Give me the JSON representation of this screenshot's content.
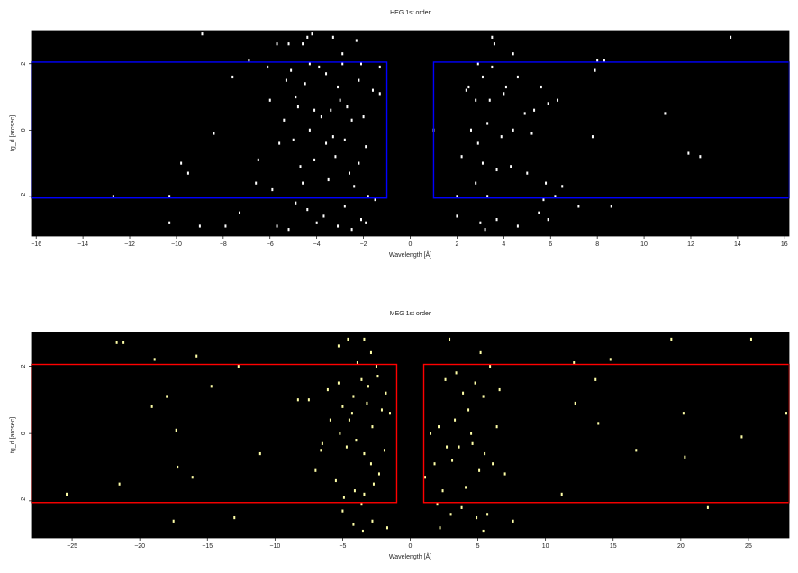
{
  "chart_data": [
    {
      "type": "scatter",
      "title": "HEG 1st order",
      "xlabel": "Wavelength [Å]",
      "ylabel": "tg_d [arcsec]",
      "xlim": [
        -16.2,
        16.2
      ],
      "ylim": [
        -3.2,
        3.0
      ],
      "xticks": [
        -16,
        -14,
        -12,
        -10,
        -8,
        -6,
        -4,
        -2,
        0,
        2,
        4,
        6,
        8,
        10,
        12,
        14,
        16
      ],
      "yticks": [
        -2,
        0,
        2
      ],
      "background": "#000000",
      "point_color": "#ffffff",
      "region_color": "#0000ff",
      "regions": [
        {
          "x0": -16.2,
          "x1": -1.0,
          "y0": -2.05,
          "y1": 2.05
        },
        {
          "x0": 1.0,
          "x1": 16.2,
          "y0": -2.05,
          "y1": 2.05
        }
      ],
      "points": [
        [
          -8.9,
          2.9
        ],
        [
          -5.7,
          2.6
        ],
        [
          -5.2,
          2.6
        ],
        [
          -4.6,
          2.6
        ],
        [
          -4.4,
          2.8
        ],
        [
          -4.2,
          2.9
        ],
        [
          -3.3,
          2.8
        ],
        [
          -2.3,
          2.7
        ],
        [
          -6.9,
          2.1
        ],
        [
          -6.1,
          1.9
        ],
        [
          -5.1,
          1.8
        ],
        [
          -4.3,
          2.0
        ],
        [
          -3.6,
          1.7
        ],
        [
          -2.9,
          2.0
        ],
        [
          -2.1,
          2.0
        ],
        [
          -1.3,
          1.9
        ],
        [
          -7.6,
          1.6
        ],
        [
          -5.3,
          1.5
        ],
        [
          -4.5,
          1.4
        ],
        [
          -3.1,
          1.3
        ],
        [
          -2.2,
          1.5
        ],
        [
          -1.6,
          1.2
        ],
        [
          -6.0,
          0.9
        ],
        [
          -4.9,
          1.0
        ],
        [
          -4.1,
          0.6
        ],
        [
          -3.4,
          0.6
        ],
        [
          -2.7,
          0.7
        ],
        [
          -2.0,
          0.4
        ],
        [
          -1.3,
          1.1
        ],
        [
          -5.4,
          0.3
        ],
        [
          -4.8,
          0.7
        ],
        [
          -3.8,
          0.4
        ],
        [
          -3.0,
          0.9
        ],
        [
          -2.5,
          0.3
        ],
        [
          -8.4,
          -0.1
        ],
        [
          -5.0,
          -0.3
        ],
        [
          -4.3,
          0.0
        ],
        [
          -3.6,
          -0.4
        ],
        [
          -2.8,
          -0.3
        ],
        [
          -1.9,
          -0.5
        ],
        [
          -6.5,
          -0.9
        ],
        [
          -5.6,
          -0.4
        ],
        [
          -4.1,
          -0.9
        ],
        [
          -3.2,
          -0.8
        ],
        [
          -2.2,
          -1.0
        ],
        [
          -9.8,
          -1.0
        ],
        [
          -9.5,
          -1.3
        ],
        [
          -6.6,
          -1.6
        ],
        [
          -5.9,
          -1.8
        ],
        [
          -4.6,
          -1.6
        ],
        [
          -3.5,
          -1.5
        ],
        [
          -2.4,
          -1.7
        ],
        [
          -1.8,
          -2.0
        ],
        [
          -12.7,
          -2.0
        ],
        [
          -10.3,
          -2.0
        ],
        [
          -7.3,
          -2.5
        ],
        [
          -5.7,
          -2.9
        ],
        [
          -4.9,
          -2.2
        ],
        [
          -4.4,
          -2.4
        ],
        [
          -3.7,
          -2.6
        ],
        [
          -2.8,
          -2.3
        ],
        [
          -2.1,
          -2.7
        ],
        [
          -1.5,
          -2.1
        ],
        [
          -10.3,
          -2.8
        ],
        [
          -9.0,
          -2.9
        ],
        [
          -7.9,
          -2.9
        ],
        [
          -5.2,
          -3.0
        ],
        [
          -4.0,
          -2.8
        ],
        [
          -3.1,
          -2.9
        ],
        [
          -2.5,
          -3.0
        ],
        [
          -1.9,
          -2.8
        ],
        [
          -2.9,
          2.3
        ],
        [
          -3.9,
          1.9
        ],
        [
          -2.6,
          -1.3
        ],
        [
          -4.7,
          -1.1
        ],
        [
          -3.3,
          -0.2
        ],
        [
          3.6,
          2.6
        ],
        [
          3.5,
          2.8
        ],
        [
          4.4,
          2.3
        ],
        [
          2.9,
          2.0
        ],
        [
          3.1,
          1.6
        ],
        [
          3.5,
          1.9
        ],
        [
          4.6,
          1.6
        ],
        [
          5.6,
          1.3
        ],
        [
          2.4,
          1.2
        ],
        [
          2.8,
          0.9
        ],
        [
          3.4,
          0.9
        ],
        [
          4.0,
          1.1
        ],
        [
          5.3,
          0.6
        ],
        [
          5.9,
          0.8
        ],
        [
          6.3,
          0.9
        ],
        [
          7.9,
          1.8
        ],
        [
          8.0,
          2.1
        ],
        [
          8.3,
          2.1
        ],
        [
          10.9,
          0.5
        ],
        [
          13.7,
          2.8
        ],
        [
          1.0,
          0.0
        ],
        [
          2.6,
          0.0
        ],
        [
          3.3,
          0.2
        ],
        [
          4.4,
          0.0
        ],
        [
          5.2,
          -0.1
        ],
        [
          7.8,
          -0.2
        ],
        [
          2.2,
          -0.8
        ],
        [
          2.9,
          -0.4
        ],
        [
          3.1,
          -1.0
        ],
        [
          3.7,
          -1.2
        ],
        [
          4.3,
          -1.1
        ],
        [
          5.0,
          -1.3
        ],
        [
          5.8,
          -1.6
        ],
        [
          6.5,
          -1.7
        ],
        [
          11.9,
          -0.7
        ],
        [
          12.4,
          -0.8
        ],
        [
          2.0,
          -2.0
        ],
        [
          2.8,
          -1.6
        ],
        [
          3.3,
          -2.0
        ],
        [
          5.7,
          -2.1
        ],
        [
          6.2,
          -2.0
        ],
        [
          7.2,
          -2.3
        ],
        [
          8.6,
          -2.3
        ],
        [
          2.0,
          -2.6
        ],
        [
          3.0,
          -2.8
        ],
        [
          3.7,
          -2.7
        ],
        [
          4.6,
          -2.9
        ],
        [
          5.5,
          -2.5
        ],
        [
          5.9,
          -2.7
        ],
        [
          3.2,
          -3.0
        ],
        [
          2.5,
          1.3
        ],
        [
          4.1,
          1.3
        ],
        [
          3.9,
          -0.2
        ],
        [
          4.9,
          0.5
        ]
      ]
    },
    {
      "type": "scatter",
      "title": "MEG 1st order",
      "xlabel": "Wavelength [Å]",
      "ylabel": "tg_d [arcsec]",
      "xlim": [
        -28,
        28
      ],
      "ylim": [
        -3.1,
        3.0
      ],
      "xticks": [
        -25,
        -20,
        -15,
        -10,
        -5,
        0,
        5,
        10,
        15,
        20,
        25
      ],
      "yticks": [
        -2,
        0,
        2
      ],
      "background": "#000000",
      "point_color": "#ffffa8",
      "region_color": "#ff0000",
      "regions": [
        {
          "x0": -28,
          "x1": -1.0,
          "y0": -2.05,
          "y1": 2.05
        },
        {
          "x0": 1.0,
          "x1": 28,
          "y0": -2.05,
          "y1": 2.05
        }
      ],
      "points": [
        [
          -21.7,
          2.7
        ],
        [
          -21.2,
          2.7
        ],
        [
          -18.9,
          2.2
        ],
        [
          -15.8,
          2.3
        ],
        [
          -14.7,
          1.4
        ],
        [
          -12.7,
          2.0
        ],
        [
          -18.0,
          1.1
        ],
        [
          -19.1,
          0.8
        ],
        [
          -17.3,
          0.1
        ],
        [
          -17.2,
          -1.0
        ],
        [
          -16.1,
          -1.3
        ],
        [
          -21.5,
          -1.5
        ],
        [
          -25.4,
          -1.8
        ],
        [
          -17.5,
          -2.6
        ],
        [
          -13.0,
          -2.5
        ],
        [
          -11.1,
          -0.6
        ],
        [
          -8.3,
          1.0
        ],
        [
          -7.5,
          1.0
        ],
        [
          -7.0,
          -1.1
        ],
        [
          -6.5,
          -0.3
        ],
        [
          -6.1,
          1.3
        ],
        [
          -5.3,
          1.5
        ],
        [
          -5.0,
          0.8
        ],
        [
          -4.5,
          0.4
        ],
        [
          -4.2,
          1.1
        ],
        [
          -3.6,
          1.6
        ],
        [
          -3.2,
          0.9
        ],
        [
          -2.8,
          0.2
        ],
        [
          -2.4,
          1.7
        ],
        [
          -1.8,
          1.2
        ],
        [
          -1.5,
          0.6
        ],
        [
          -5.2,
          0.0
        ],
        [
          -4.7,
          -0.4
        ],
        [
          -4.0,
          -0.2
        ],
        [
          -3.4,
          -0.6
        ],
        [
          -2.9,
          -0.9
        ],
        [
          -2.3,
          -1.2
        ],
        [
          -1.9,
          -0.5
        ],
        [
          -5.5,
          -1.4
        ],
        [
          -4.9,
          -1.9
        ],
        [
          -4.1,
          -1.7
        ],
        [
          -3.4,
          -1.8
        ],
        [
          -2.7,
          -1.5
        ],
        [
          -5.0,
          -2.3
        ],
        [
          -4.2,
          -2.7
        ],
        [
          -3.5,
          -2.9
        ],
        [
          -2.8,
          -2.6
        ],
        [
          -1.7,
          -2.8
        ],
        [
          -5.3,
          2.6
        ],
        [
          -4.6,
          2.8
        ],
        [
          -3.9,
          2.1
        ],
        [
          -3.4,
          2.8
        ],
        [
          -2.9,
          2.4
        ],
        [
          -2.5,
          2.0
        ],
        [
          -6.6,
          -0.5
        ],
        [
          -3.6,
          -2.1
        ],
        [
          -4.3,
          0.6
        ],
        [
          -3.1,
          1.4
        ],
        [
          -5.9,
          0.4
        ],
        [
          -2.1,
          0.7
        ],
        [
          1.1,
          -1.3
        ],
        [
          1.5,
          0.0
        ],
        [
          1.8,
          -0.9
        ],
        [
          2.1,
          0.2
        ],
        [
          2.6,
          1.6
        ],
        [
          2.9,
          2.8
        ],
        [
          3.4,
          1.8
        ],
        [
          3.9,
          1.2
        ],
        [
          4.3,
          0.7
        ],
        [
          4.8,
          1.5
        ],
        [
          5.2,
          2.4
        ],
        [
          5.9,
          2.0
        ],
        [
          2.4,
          -1.7
        ],
        [
          3.1,
          -0.8
        ],
        [
          3.6,
          -0.4
        ],
        [
          4.1,
          -1.6
        ],
        [
          4.6,
          -0.3
        ],
        [
          5.1,
          -1.1
        ],
        [
          5.5,
          -0.6
        ],
        [
          6.1,
          -0.9
        ],
        [
          6.4,
          0.2
        ],
        [
          7.0,
          -1.2
        ],
        [
          2.0,
          -2.1
        ],
        [
          3.0,
          -2.4
        ],
        [
          3.8,
          -2.2
        ],
        [
          4.9,
          -2.5
        ],
        [
          5.7,
          -2.4
        ],
        [
          7.6,
          -2.6
        ],
        [
          2.2,
          -2.8
        ],
        [
          5.4,
          -2.9
        ],
        [
          12.1,
          2.1
        ],
        [
          14.8,
          2.2
        ],
        [
          13.7,
          1.6
        ],
        [
          12.2,
          0.9
        ],
        [
          13.9,
          0.3
        ],
        [
          16.7,
          -0.5
        ],
        [
          20.2,
          0.6
        ],
        [
          19.3,
          2.8
        ],
        [
          25.2,
          2.8
        ],
        [
          24.5,
          -0.1
        ],
        [
          27.8,
          0.6
        ],
        [
          20.3,
          -0.7
        ],
        [
          11.2,
          -1.8
        ],
        [
          22.0,
          -2.2
        ],
        [
          5.4,
          1.1
        ],
        [
          4.5,
          0.0
        ],
        [
          3.3,
          0.4
        ],
        [
          2.7,
          -0.4
        ],
        [
          6.6,
          1.3
        ]
      ]
    }
  ]
}
